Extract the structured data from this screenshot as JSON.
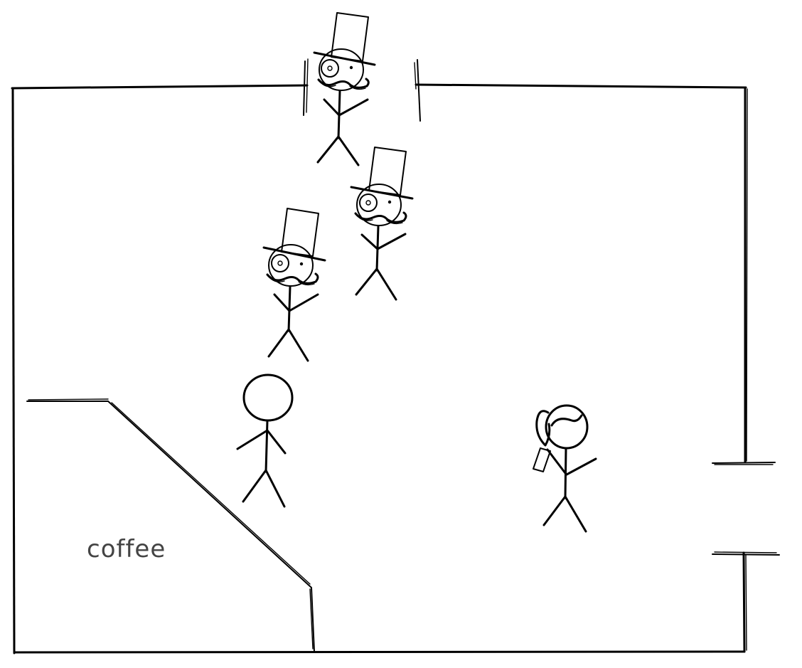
{
  "colors": {
    "background": "#ffffff",
    "ink": "#000000",
    "label": "#444444"
  },
  "counter": {
    "label": "coffee"
  },
  "figures": {
    "gentlemen": [
      {
        "type": "top-hat-gentleman"
      },
      {
        "type": "top-hat-gentleman"
      },
      {
        "type": "top-hat-gentleman"
      }
    ],
    "plain_person": {
      "type": "plain-stick-figure"
    },
    "ponytail_person": {
      "type": "ponytail-stick-figure-with-phone"
    }
  }
}
